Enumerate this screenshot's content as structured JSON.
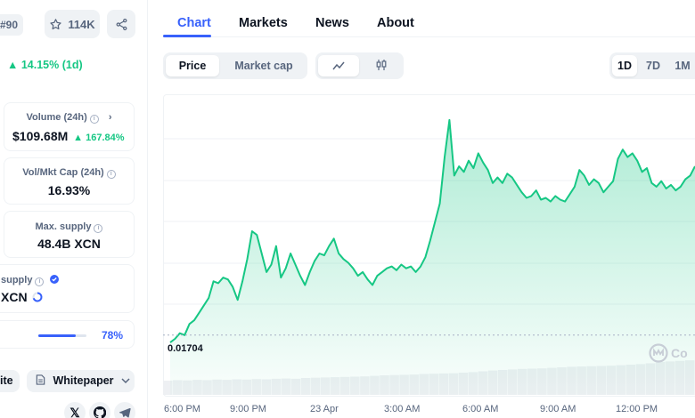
{
  "colors": {
    "accent": "#3861fb",
    "positive": "#16c784",
    "muted": "#58667e",
    "chart_line": "#16c784"
  },
  "header": {
    "rank": "#90",
    "watchlist_count": "114K",
    "change_1d": "▲ 14.15% (1d)"
  },
  "stats": {
    "volume": {
      "label": "Volume (24h)",
      "value": "$109.68M",
      "change": "▲ 167.84%"
    },
    "vol_mkt_cap": {
      "label": "Vol/Mkt Cap (24h)",
      "value": "16.93%"
    },
    "max_supply": {
      "label": "Max. supply",
      "value": "48.4B XCN"
    },
    "total_supply": {
      "label": "supply",
      "value": "XCN"
    },
    "supply_progress": {
      "percent_label": "78%",
      "fraction": 0.78
    }
  },
  "links": {
    "website_label": "ite",
    "whitepaper_label": "Whitepaper"
  },
  "social": [
    "x-icon",
    "github-icon",
    "telegram-icon"
  ],
  "tabs": [
    {
      "label": "Chart",
      "active": true
    },
    {
      "label": "Markets",
      "active": false
    },
    {
      "label": "News",
      "active": false
    },
    {
      "label": "About",
      "active": false
    }
  ],
  "chart_controls": {
    "price_label": "Price",
    "market_cap_label": "Market cap",
    "view_line_icon": "line-chart-icon",
    "view_candle_icon": "candlestick-icon",
    "ranges": [
      "1D",
      "7D",
      "1M"
    ],
    "selected_range": "1D"
  },
  "chart_data": {
    "type": "area",
    "reference_label": "0.01704",
    "x_ticks": [
      "6:00 PM",
      "9:00 PM",
      "23 Apr",
      "3:00 AM",
      "6:00 AM",
      "9:00 AM",
      "12:00 PM"
    ],
    "points": [
      0.017,
      0.01702,
      0.01705,
      0.01704,
      0.0171,
      0.01712,
      0.01716,
      0.0172,
      0.01724,
      0.01733,
      0.01732,
      0.01735,
      0.01734,
      0.0173,
      0.01723,
      0.01733,
      0.01745,
      0.0176,
      0.01758,
      0.01748,
      0.01738,
      0.01742,
      0.01752,
      0.01735,
      0.0174,
      0.01748,
      0.01742,
      0.01736,
      0.01731,
      0.01738,
      0.01744,
      0.01748,
      0.01747,
      0.01752,
      0.01756,
      0.01748,
      0.01745,
      0.01743,
      0.0174,
      0.01736,
      0.01738,
      0.01734,
      0.01731,
      0.01736,
      0.01738,
      0.0174,
      0.01741,
      0.01739,
      0.01742,
      0.0174,
      0.01741,
      0.01738,
      0.01741,
      0.01746,
      0.01755,
      0.01765,
      0.01775,
      0.018,
      0.0182,
      0.0179,
      0.01795,
      0.01792,
      0.01798,
      0.01794,
      0.01802,
      0.01797,
      0.01793,
      0.01786,
      0.01789,
      0.01786,
      0.01791,
      0.01789,
      0.01785,
      0.01781,
      0.01778,
      0.01779,
      0.01782,
      0.01777,
      0.01778,
      0.01776,
      0.01779,
      0.01777,
      0.01776,
      0.0178,
      0.01784,
      0.01793,
      0.0179,
      0.01785,
      0.01788,
      0.01786,
      0.01781,
      0.01784,
      0.01787,
      0.01799,
      0.01804,
      0.018,
      0.01802,
      0.01798,
      0.01792,
      0.01794,
      0.01786,
      0.01784,
      0.01787,
      0.01783,
      0.01785,
      0.01782,
      0.01784,
      0.01788,
      0.0179,
      0.01795
    ],
    "volume_bars_relative": [
      0.2,
      0.22,
      0.21,
      0.23,
      0.22,
      0.24,
      0.23,
      0.25,
      0.24,
      0.26,
      0.25,
      0.27,
      0.28,
      0.27,
      0.3,
      0.31,
      0.32,
      0.33,
      0.34,
      0.35,
      0.36,
      0.38,
      0.4,
      0.41,
      0.42,
      0.43,
      0.45,
      0.46,
      0.47,
      0.48,
      0.5,
      0.52,
      0.55,
      0.58,
      0.6,
      0.62,
      0.64,
      0.65,
      0.66,
      0.68,
      0.7,
      0.72,
      0.73,
      0.74,
      0.75,
      0.76,
      0.78,
      0.8,
      0.82,
      0.85,
      0.9,
      0.92,
      0.94,
      0.96
    ],
    "ylim": [
      0.0169,
      0.0183
    ],
    "grid": true,
    "legend": "none"
  },
  "watermark": "Co"
}
